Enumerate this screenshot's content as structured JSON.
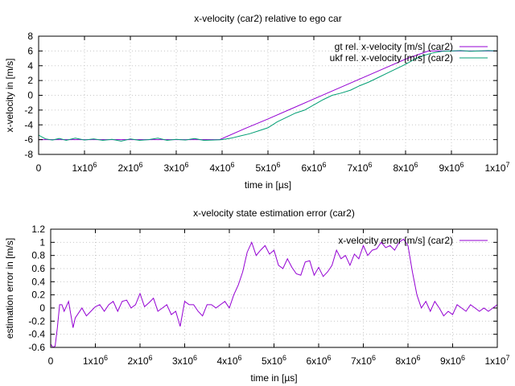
{
  "chart_data": [
    {
      "type": "line",
      "title": "x-velocity (car2) relative to ego car",
      "xlabel": "time in [µs]",
      "ylabel": "x-velocity in [m/s]",
      "xlim": [
        0,
        10000000
      ],
      "ylim": [
        -8,
        8
      ],
      "x_ticks": [
        {
          "value": 0,
          "base": "0",
          "exp": ""
        },
        {
          "value": 1000000,
          "base": "1x10",
          "exp": "6"
        },
        {
          "value": 2000000,
          "base": "2x10",
          "exp": "6"
        },
        {
          "value": 3000000,
          "base": "3x10",
          "exp": "6"
        },
        {
          "value": 4000000,
          "base": "4x10",
          "exp": "6"
        },
        {
          "value": 5000000,
          "base": "5x10",
          "exp": "6"
        },
        {
          "value": 6000000,
          "base": "6x10",
          "exp": "6"
        },
        {
          "value": 7000000,
          "base": "7x10",
          "exp": "6"
        },
        {
          "value": 8000000,
          "base": "8x10",
          "exp": "6"
        },
        {
          "value": 9000000,
          "base": "9x10",
          "exp": "6"
        },
        {
          "value": 10000000,
          "base": "1x10",
          "exp": "7"
        }
      ],
      "y_ticks": [
        "8",
        "6",
        "4",
        "2",
        "0",
        "-2",
        "-4",
        "-6",
        "-8"
      ],
      "y_tick_values": [
        8,
        6,
        4,
        2,
        0,
        -2,
        -4,
        -6,
        -8
      ],
      "grid": true,
      "legend_position": "top-right",
      "series": [
        {
          "name": "gt rel. x-velocity [m/s] (car2)",
          "color": "#9400d3",
          "x": [
            0,
            500000,
            1000000,
            1500000,
            2000000,
            2500000,
            3000000,
            3500000,
            3950000,
            4500000,
            5000000,
            5500000,
            6000000,
            6500000,
            7000000,
            7500000,
            8000000,
            8500000,
            9000000,
            9500000,
            10000000
          ],
          "y": [
            -6.0,
            -6.0,
            -6.0,
            -6.0,
            -6.0,
            -6.0,
            -6.0,
            -6.0,
            -6.0,
            -4.5,
            -3.2,
            -1.85,
            -0.5,
            0.85,
            2.2,
            3.55,
            4.9,
            6.0,
            6.0,
            6.0,
            6.0
          ]
        },
        {
          "name": "ukf rel. x-velocity [m/s] (car2)",
          "color": "#009e73",
          "x": [
            0,
            150000,
            300000,
            450000,
            600000,
            800000,
            1000000,
            1200000,
            1400000,
            1600000,
            1800000,
            2000000,
            2200000,
            2400000,
            2600000,
            2800000,
            3000000,
            3200000,
            3400000,
            3600000,
            3800000,
            4000000,
            4200000,
            4400000,
            4600000,
            4800000,
            5000000,
            5200000,
            5400000,
            5600000,
            5800000,
            6000000,
            6200000,
            6400000,
            6600000,
            6800000,
            7000000,
            7200000,
            7400000,
            7600000,
            7800000,
            8000000,
            8200000,
            8400000,
            8600000,
            8800000,
            9000000,
            9200000,
            9400000,
            9600000,
            9800000,
            10000000
          ],
          "y": [
            -5.4,
            -5.9,
            -6.05,
            -5.85,
            -6.1,
            -5.8,
            -6.05,
            -5.9,
            -6.1,
            -5.95,
            -6.2,
            -5.9,
            -6.1,
            -6.0,
            -5.8,
            -6.1,
            -5.95,
            -6.05,
            -5.85,
            -6.1,
            -6.05,
            -6.0,
            -5.8,
            -5.5,
            -5.2,
            -4.8,
            -4.4,
            -3.6,
            -3.0,
            -2.4,
            -2.0,
            -1.3,
            -0.6,
            0.0,
            0.3,
            0.7,
            1.3,
            1.8,
            2.4,
            3.0,
            3.6,
            4.2,
            4.9,
            5.4,
            5.75,
            5.95,
            6.0,
            6.05,
            5.95,
            6.0,
            6.05,
            6.0
          ]
        }
      ]
    },
    {
      "type": "line",
      "title": "x-velocity state estimation error (car2)",
      "xlabel": "time in [µs]",
      "ylabel": "estimation error in [m/s]",
      "xlim": [
        0,
        10000000
      ],
      "ylim": [
        -0.6,
        1.2
      ],
      "x_ticks": [
        {
          "value": 0,
          "base": "0",
          "exp": ""
        },
        {
          "value": 1000000,
          "base": "1x10",
          "exp": "6"
        },
        {
          "value": 2000000,
          "base": "2x10",
          "exp": "6"
        },
        {
          "value": 3000000,
          "base": "3x10",
          "exp": "6"
        },
        {
          "value": 4000000,
          "base": "4x10",
          "exp": "6"
        },
        {
          "value": 5000000,
          "base": "5x10",
          "exp": "6"
        },
        {
          "value": 6000000,
          "base": "6x10",
          "exp": "6"
        },
        {
          "value": 7000000,
          "base": "7x10",
          "exp": "6"
        },
        {
          "value": 8000000,
          "base": "8x10",
          "exp": "6"
        },
        {
          "value": 9000000,
          "base": "9x10",
          "exp": "6"
        },
        {
          "value": 10000000,
          "base": "1x10",
          "exp": "7"
        }
      ],
      "y_ticks": [
        "1.2",
        "1",
        "0.8",
        "0.6",
        "0.4",
        "0.2",
        "0",
        "-0.2",
        "-0.4",
        "-0.6"
      ],
      "y_tick_values": [
        1.2,
        1.0,
        0.8,
        0.6,
        0.4,
        0.2,
        0.0,
        -0.2,
        -0.4,
        -0.6
      ],
      "grid": true,
      "legend_position": "top-right",
      "series": [
        {
          "name": "x-velocity error [m/s] (car2)",
          "color": "#9400d3",
          "x": [
            0,
            50000,
            100000,
            150000,
            200000,
            250000,
            300000,
            400000,
            500000,
            550000,
            600000,
            700000,
            800000,
            900000,
            1000000,
            1100000,
            1200000,
            1300000,
            1400000,
            1500000,
            1600000,
            1700000,
            1800000,
            1900000,
            2000000,
            2100000,
            2200000,
            2300000,
            2400000,
            2500000,
            2600000,
            2700000,
            2800000,
            2900000,
            3000000,
            3100000,
            3200000,
            3300000,
            3400000,
            3500000,
            3600000,
            3700000,
            3800000,
            3900000,
            4000000,
            4100000,
            4200000,
            4300000,
            4400000,
            4500000,
            4600000,
            4700000,
            4800000,
            4900000,
            5000000,
            5100000,
            5200000,
            5300000,
            5400000,
            5500000,
            5600000,
            5700000,
            5800000,
            5900000,
            6000000,
            6100000,
            6200000,
            6300000,
            6400000,
            6500000,
            6600000,
            6700000,
            6800000,
            6900000,
            7000000,
            7100000,
            7200000,
            7300000,
            7400000,
            7500000,
            7600000,
            7700000,
            7800000,
            7900000,
            8000000,
            8100000,
            8200000,
            8300000,
            8400000,
            8500000,
            8600000,
            8700000,
            8800000,
            8900000,
            9000000,
            9100000,
            9200000,
            9300000,
            9400000,
            9500000,
            9600000,
            9700000,
            9800000,
            9900000,
            10000000
          ],
          "y": [
            -0.55,
            -0.6,
            -0.58,
            -0.3,
            0.05,
            0.05,
            -0.05,
            0.1,
            -0.3,
            -0.15,
            -0.1,
            0.0,
            -0.12,
            -0.05,
            0.02,
            0.05,
            -0.05,
            0.05,
            0.1,
            -0.05,
            0.1,
            0.12,
            0.0,
            0.05,
            0.22,
            0.02,
            0.08,
            0.15,
            -0.05,
            0.0,
            0.05,
            -0.1,
            -0.05,
            -0.28,
            0.1,
            0.05,
            0.05,
            -0.05,
            -0.12,
            0.05,
            0.05,
            0.0,
            0.05,
            0.1,
            0.0,
            0.2,
            0.35,
            0.55,
            0.85,
            1.0,
            0.8,
            0.88,
            0.95,
            0.82,
            0.88,
            0.65,
            0.6,
            0.75,
            0.62,
            0.52,
            0.5,
            0.7,
            0.72,
            0.5,
            0.62,
            0.48,
            0.55,
            0.65,
            0.88,
            0.75,
            0.8,
            0.65,
            0.82,
            0.75,
            0.95,
            0.8,
            0.88,
            0.9,
            1.0,
            0.92,
            0.95,
            0.88,
            1.0,
            1.05,
            0.95,
            0.55,
            0.2,
            0.0,
            0.1,
            -0.05,
            0.1,
            0.0,
            -0.12,
            -0.05,
            -0.1,
            0.05,
            0.0,
            -0.05,
            0.05,
            0.0,
            -0.05,
            0.0,
            -0.05,
            0.0,
            0.05
          ]
        }
      ]
    }
  ]
}
